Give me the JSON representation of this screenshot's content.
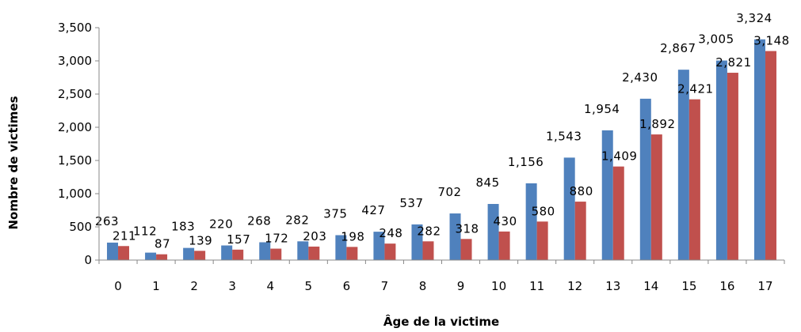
{
  "chart_data": {
    "type": "bar",
    "categories": [
      "0",
      "1",
      "2",
      "3",
      "4",
      "5",
      "6",
      "7",
      "8",
      "9",
      "10",
      "11",
      "12",
      "13",
      "14",
      "15",
      "16",
      "17"
    ],
    "series": [
      {
        "values": [
          263,
          112,
          183,
          220,
          268,
          282,
          375,
          427,
          537,
          702,
          845,
          1156,
          1543,
          1954,
          2430,
          2867,
          3005,
          3324
        ],
        "color": "#4F81BD"
      },
      {
        "values": [
          211,
          87,
          139,
          157,
          172,
          203,
          198,
          248,
          282,
          318,
          430,
          580,
          880,
          1409,
          1892,
          2421,
          2821,
          3148
        ],
        "color": "#C0504D"
      }
    ],
    "data_labels": [
      [
        "263",
        "112",
        "183",
        "220",
        "268",
        "282",
        "375",
        "427",
        "537",
        "702",
        "845",
        "1,156",
        "1,543",
        "1,954",
        "2,430",
        "2,867",
        "3,005",
        "3,324"
      ],
      [
        "211",
        "87",
        "139",
        "157",
        "172",
        "203",
        "198",
        "248",
        "282",
        "318",
        "430",
        "580",
        "880",
        "1,409",
        "1,892",
        "2,421",
        "2,821",
        "3,148"
      ]
    ],
    "xlabel": "Âge de la victime",
    "ylabel": "Nombre de victimes",
    "ylim": [
      0,
      3500
    ],
    "yticks": [
      0,
      500,
      1000,
      1500,
      2000,
      2500,
      3000,
      3500
    ],
    "ytick_labels": [
      "0",
      "500",
      "1,000",
      "1,500",
      "2,000",
      "2,500",
      "3,000",
      "3,500"
    ],
    "grid": false,
    "legend": "none"
  }
}
